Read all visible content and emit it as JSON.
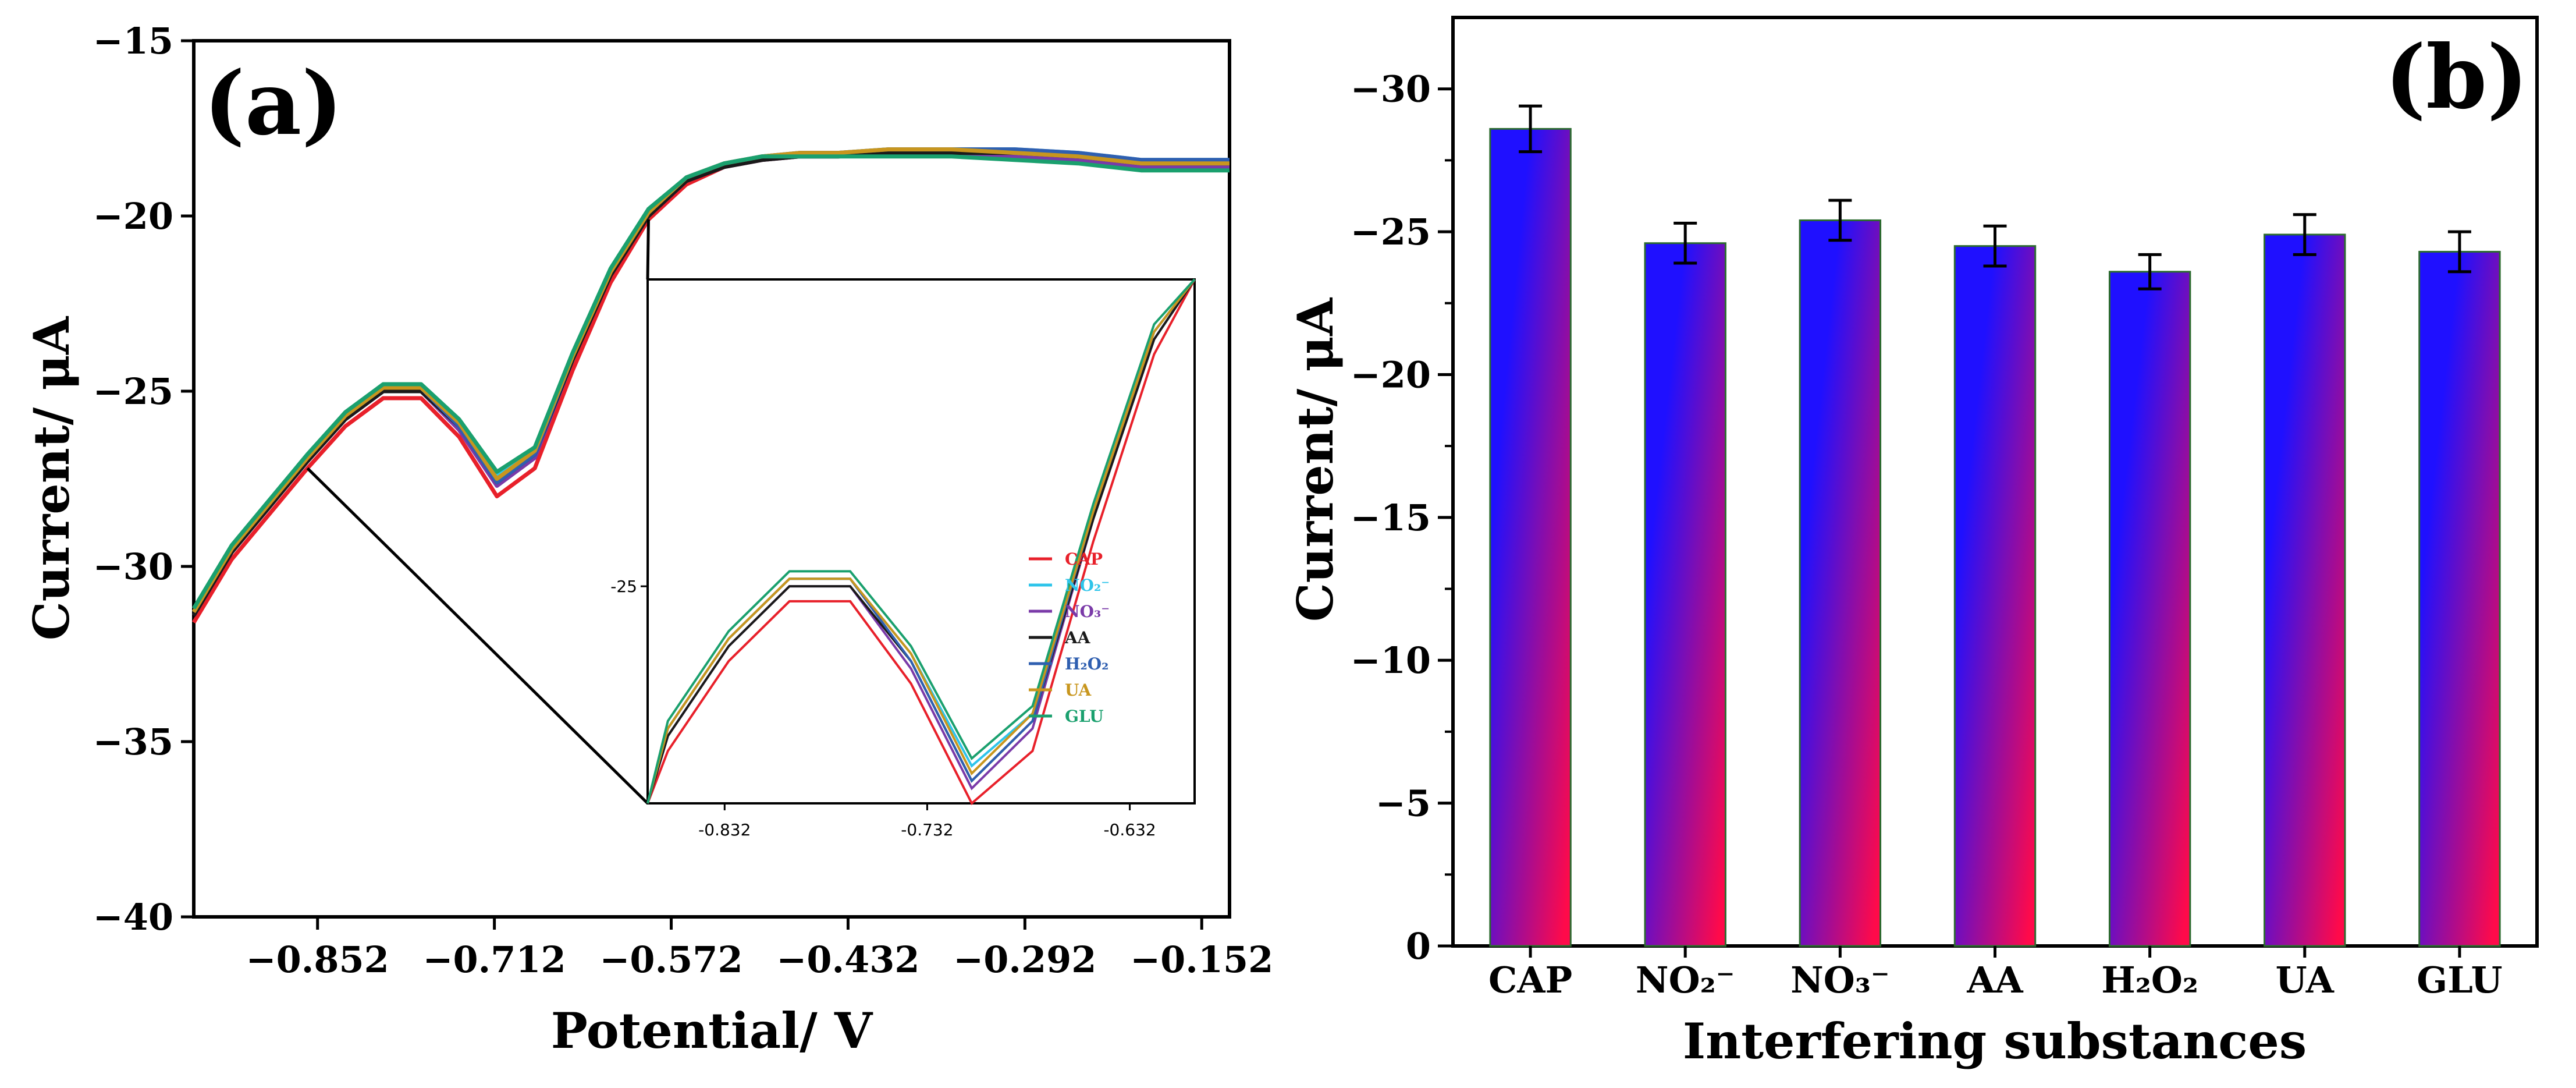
{
  "chart_data": [
    {
      "panel": "(a)",
      "type": "line",
      "title": "",
      "xlabel": "Potential/ V",
      "ylabel": "Current/ μA",
      "xlim": [
        -0.95,
        -0.13
      ],
      "ylim": [
        -40,
        -15
      ],
      "xticks": [
        -0.852,
        -0.712,
        -0.572,
        -0.432,
        -0.292,
        -0.152
      ],
      "xtick_labels": [
        "−0.852",
        "−0.712",
        "−0.572",
        "−0.432",
        "−0.292",
        "−0.152"
      ],
      "yticks": [
        -40,
        -35,
        -30,
        -25,
        -20,
        -15
      ],
      "ytick_labels": [
        "−40",
        "−35",
        "−30",
        "−25",
        "−20",
        "−15"
      ],
      "grid": false,
      "x": [
        -0.95,
        -0.92,
        -0.89,
        -0.86,
        -0.83,
        -0.8,
        -0.77,
        -0.74,
        -0.71,
        -0.68,
        -0.65,
        -0.62,
        -0.59,
        -0.56,
        -0.53,
        -0.5,
        -0.47,
        -0.44,
        -0.4,
        -0.35,
        -0.3,
        -0.25,
        -0.2,
        -0.16,
        -0.13
      ],
      "series": [
        {
          "name": "CAP",
          "color": "#e8202a",
          "y": [
            -31.6,
            -29.8,
            -28.5,
            -27.2,
            -26.0,
            -25.2,
            -25.2,
            -26.3,
            -28.0,
            -27.2,
            -24.4,
            -21.9,
            -20.1,
            -19.1,
            -18.6,
            -18.4,
            -18.3,
            -18.3,
            -18.2,
            -18.2,
            -18.2,
            -18.3,
            -18.5,
            -18.5,
            -18.5
          ]
        },
        {
          "name": "NO₂⁻",
          "color": "#2ec4ea",
          "y": [
            -31.3,
            -29.5,
            -28.2,
            -26.9,
            -25.7,
            -24.9,
            -24.9,
            -25.9,
            -27.4,
            -26.7,
            -24.0,
            -21.6,
            -19.9,
            -18.9,
            -18.5,
            -18.3,
            -18.2,
            -18.2,
            -18.1,
            -18.1,
            -18.1,
            -18.2,
            -18.4,
            -18.4,
            -18.4
          ]
        },
        {
          "name": "NO₃⁻",
          "color": "#7a3aa8",
          "y": [
            -31.4,
            -29.6,
            -28.3,
            -27.0,
            -25.8,
            -25.0,
            -25.0,
            -26.1,
            -27.7,
            -26.9,
            -24.1,
            -21.7,
            -20.0,
            -19.0,
            -18.6,
            -18.4,
            -18.3,
            -18.3,
            -18.2,
            -18.2,
            -18.3,
            -18.4,
            -18.6,
            -18.6,
            -18.6
          ]
        },
        {
          "name": "AA",
          "color": "#1a1a1a",
          "y": [
            -31.4,
            -29.6,
            -28.3,
            -27.0,
            -25.8,
            -25.0,
            -25.0,
            -26.0,
            -27.6,
            -26.8,
            -24.1,
            -21.7,
            -20.0,
            -19.0,
            -18.6,
            -18.4,
            -18.3,
            -18.3,
            -18.2,
            -18.2,
            -18.2,
            -18.3,
            -18.5,
            -18.5,
            -18.5
          ]
        },
        {
          "name": "H₂O₂",
          "color": "#2f5fb0",
          "y": [
            -31.3,
            -29.5,
            -28.2,
            -26.9,
            -25.7,
            -24.9,
            -24.9,
            -26.0,
            -27.6,
            -26.8,
            -24.0,
            -21.6,
            -19.9,
            -18.9,
            -18.5,
            -18.3,
            -18.2,
            -18.2,
            -18.1,
            -18.1,
            -18.1,
            -18.2,
            -18.4,
            -18.4,
            -18.4
          ]
        },
        {
          "name": "UA",
          "color": "#c8961e",
          "y": [
            -31.3,
            -29.5,
            -28.2,
            -26.9,
            -25.7,
            -24.9,
            -24.9,
            -25.9,
            -27.5,
            -26.7,
            -24.0,
            -21.6,
            -19.9,
            -18.9,
            -18.5,
            -18.3,
            -18.2,
            -18.2,
            -18.1,
            -18.1,
            -18.2,
            -18.3,
            -18.5,
            -18.5,
            -18.5
          ]
        },
        {
          "name": "GLU",
          "color": "#1aa06e",
          "y": [
            -31.2,
            -29.4,
            -28.1,
            -26.8,
            -25.6,
            -24.8,
            -24.8,
            -25.8,
            -27.3,
            -26.6,
            -23.9,
            -21.5,
            -19.8,
            -18.9,
            -18.5,
            -18.3,
            -18.3,
            -18.3,
            -18.3,
            -18.3,
            -18.4,
            -18.5,
            -18.7,
            -18.7,
            -18.7
          ]
        }
      ],
      "inset": {
        "xlim": [
          -0.87,
          -0.6
        ],
        "ylim": [
          -27.9,
          -20.9
        ],
        "xticks": [
          -0.832,
          -0.732,
          -0.632
        ],
        "xtick_labels": [
          "-0.832",
          "-0.732",
          "-0.632"
        ],
        "yticks": [
          -25
        ],
        "ytick_labels": [
          "-25"
        ],
        "legend_placement": "right",
        "legend": [
          "CAP",
          "NO₂⁻",
          "NO₃⁻",
          "AA",
          "H₂O₂",
          "UA",
          "GLU"
        ]
      }
    },
    {
      "panel": "(b)",
      "type": "bar",
      "title": "",
      "xlabel": "Interfering substances",
      "ylabel": "Current/ μA",
      "categories": [
        "CAP",
        "NO₂⁻",
        "NO₃⁻",
        "AA",
        "H₂O₂",
        "UA",
        "GLU"
      ],
      "values": [
        -28.6,
        -24.6,
        -25.4,
        -24.5,
        -23.6,
        -24.9,
        -24.3
      ],
      "errors": [
        0.8,
        0.7,
        0.7,
        0.7,
        0.6,
        0.7,
        0.7
      ],
      "ylim": [
        0,
        -32.5
      ],
      "yticks": [
        0,
        -5,
        -10,
        -15,
        -20,
        -25,
        -30
      ],
      "ytick_labels": [
        "0",
        "−5",
        "−10",
        "−15",
        "−20",
        "−25",
        "−30"
      ],
      "grid": false,
      "bar_gradient": [
        "#1f10ff",
        "#ff0a4a"
      ]
    }
  ]
}
